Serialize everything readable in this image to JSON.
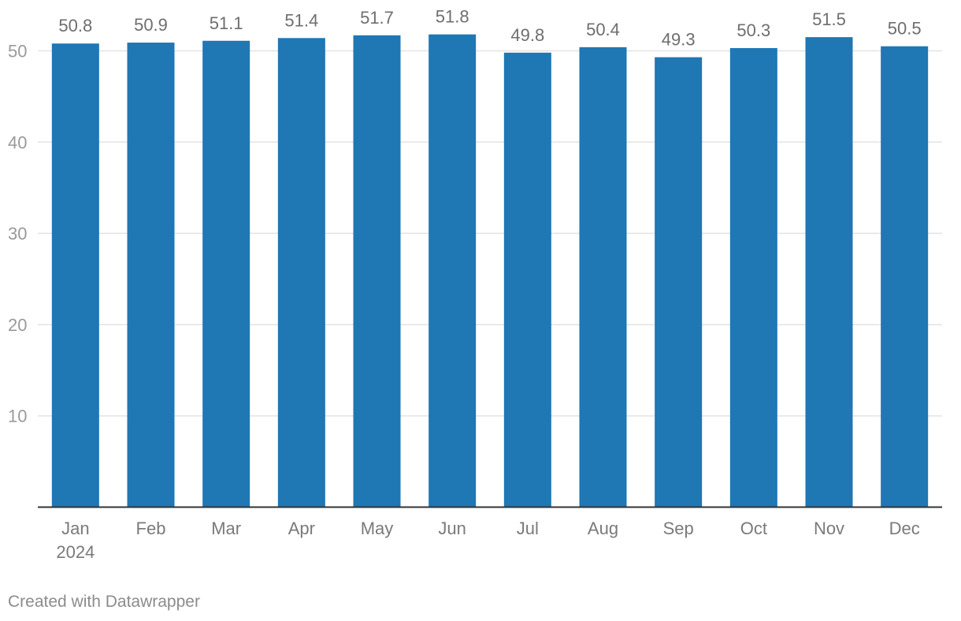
{
  "chart_data": {
    "type": "bar",
    "categories": [
      "Jan",
      "Feb",
      "Mar",
      "Apr",
      "May",
      "Jun",
      "Jul",
      "Aug",
      "Sep",
      "Oct",
      "Nov",
      "Dec"
    ],
    "category_sublabels": [
      "2024",
      "",
      "",
      "",
      "",
      "",
      "",
      "",
      "",
      "",
      "",
      ""
    ],
    "values": [
      50.8,
      50.9,
      51.1,
      51.4,
      51.7,
      51.8,
      49.8,
      50.4,
      49.3,
      50.3,
      51.5,
      50.5
    ],
    "value_labels": [
      "50.8",
      "50.9",
      "51.1",
      "51.4",
      "51.7",
      "51.8",
      "49.8",
      "50.4",
      "49.3",
      "50.3",
      "51.5",
      "50.5"
    ],
    "yticks": [
      10,
      20,
      30,
      40,
      50
    ],
    "ylim": [
      0,
      55.8
    ],
    "grid": true,
    "title": "",
    "xlabel": "",
    "ylabel": "",
    "colors": {
      "bar": "#1f77b4",
      "grid": "#e3e3e3",
      "axis": "#333333"
    }
  },
  "footer": {
    "credit": "Created with Datawrapper"
  }
}
